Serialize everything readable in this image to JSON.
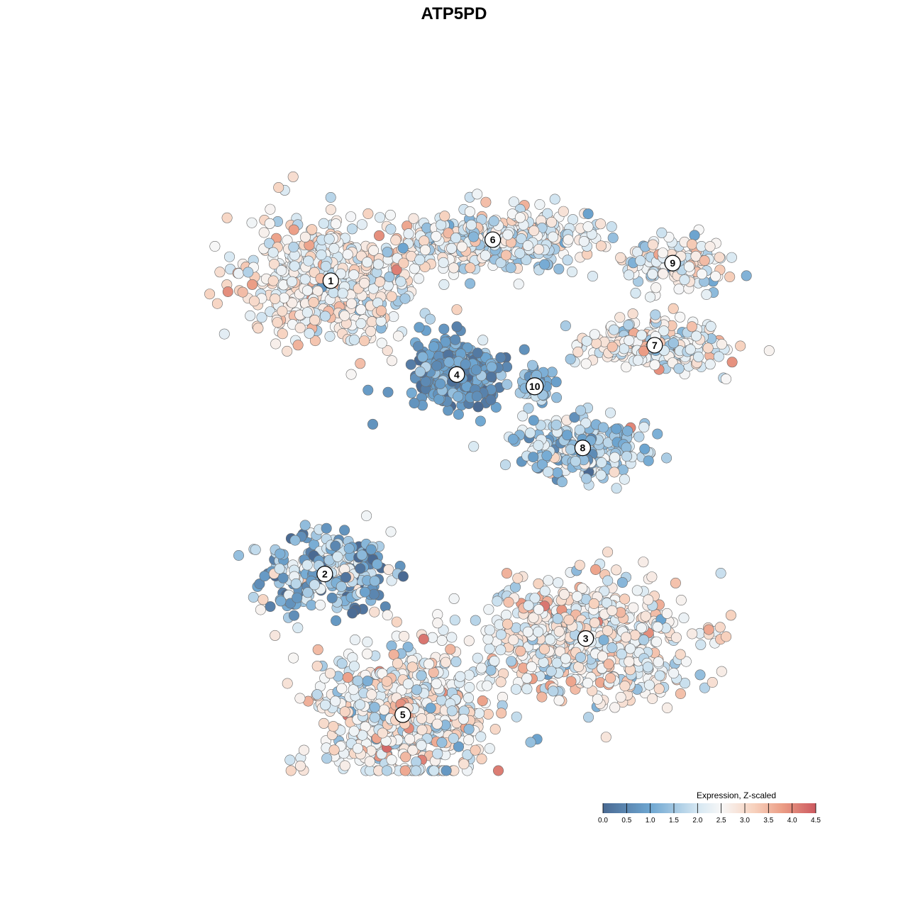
{
  "chart_data": {
    "type": "scatter",
    "title": "ATP5PD",
    "xlabel": "",
    "ylabel": "",
    "grid": false,
    "legend": {
      "title": "Expression, Z-scaled",
      "placement": "bottom-right",
      "ticks": [
        "0.0",
        "0.5",
        "1.0",
        "1.5",
        "2.0",
        "2.5",
        "3.0",
        "3.5",
        "4.0",
        "4.5"
      ],
      "range": [
        0,
        4.5
      ]
    },
    "color_scale": {
      "stops": [
        {
          "value": 0.0,
          "color": "#4a6a93"
        },
        {
          "value": 1.0,
          "color": "#6ea6d1"
        },
        {
          "value": 2.0,
          "color": "#d5e7f2"
        },
        {
          "value": 2.5,
          "color": "#f7f7f7"
        },
        {
          "value": 3.2,
          "color": "#f7d1bd"
        },
        {
          "value": 3.8,
          "color": "#eb9d85"
        },
        {
          "value": 4.5,
          "color": "#cc5960"
        }
      ]
    },
    "xlim": [
      -55,
      55
    ],
    "ylim": [
      -55,
      55
    ],
    "clusters": [
      {
        "label": "1",
        "x": -23.5,
        "y": 29.5,
        "spread_x": 13,
        "spread_y": 10,
        "n": 520,
        "mean": 2.55,
        "sd": 0.55
      },
      {
        "label": "6",
        "x": 3.5,
        "y": 36.5,
        "spread_x": 14,
        "spread_y": 4.5,
        "n": 420,
        "mean": 2.3,
        "sd": 0.6
      },
      {
        "label": "4",
        "x": -2.5,
        "y": 13.5,
        "spread_x": 6.5,
        "spread_y": 5.5,
        "n": 320,
        "mean": 0.75,
        "sd": 0.45
      },
      {
        "label": "10",
        "x": 10.5,
        "y": 11.5,
        "spread_x": 2.5,
        "spread_y": 3.0,
        "n": 60,
        "mean": 1.3,
        "sd": 0.5
      },
      {
        "label": "9",
        "x": 33.5,
        "y": 32.5,
        "spread_x": 8,
        "spread_y": 4,
        "n": 140,
        "mean": 2.3,
        "sd": 0.6
      },
      {
        "label": "7",
        "x": 30.5,
        "y": 18.5,
        "spread_x": 11,
        "spread_y": 4,
        "n": 230,
        "mean": 2.5,
        "sd": 0.55
      },
      {
        "label": "8",
        "x": 18.5,
        "y": 1.0,
        "spread_x": 10,
        "spread_y": 4.5,
        "n": 230,
        "mean": 1.6,
        "sd": 0.65
      },
      {
        "label": "2",
        "x": -24.5,
        "y": -20.5,
        "spread_x": 10,
        "spread_y": 6,
        "n": 260,
        "mean": 1.3,
        "sd": 0.8
      },
      {
        "label": "3",
        "x": 19.0,
        "y": -31.5,
        "spread_x": 16,
        "spread_y": 9,
        "n": 620,
        "mean": 2.55,
        "sd": 0.6
      },
      {
        "label": "5",
        "x": -11.5,
        "y": -44.5,
        "spread_x": 13,
        "spread_y": 10,
        "n": 560,
        "mean": 2.5,
        "sd": 0.65
      }
    ]
  }
}
